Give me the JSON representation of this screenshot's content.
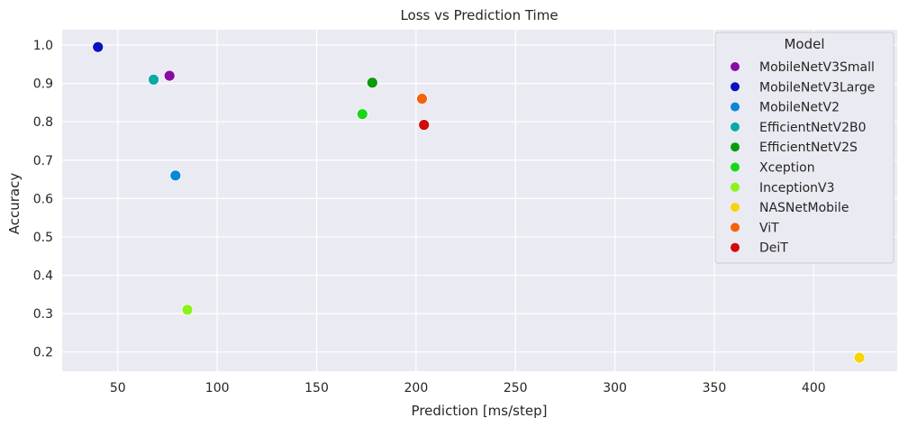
{
  "chart_data": {
    "type": "scatter",
    "title": "Loss vs Prediction Time",
    "xlabel": "Prediction [ms/step]",
    "ylabel": "Accuracy",
    "xlim": [
      22,
      442
    ],
    "ylim": [
      0.15,
      1.04
    ],
    "xticks": [
      50,
      100,
      150,
      200,
      250,
      300,
      350,
      400
    ],
    "yticks": [
      0.2,
      0.3,
      0.4,
      0.5,
      0.6,
      0.7,
      0.8,
      0.9,
      1.0
    ],
    "grid": true,
    "legend": {
      "title": "Model",
      "position": "upper-right"
    },
    "series": [
      {
        "name": "MobileNetV3Small",
        "color": "#8a0aa5",
        "x": 76,
        "y": 0.92
      },
      {
        "name": "MobileNetV3Large",
        "color": "#0a10c0",
        "x": 40,
        "y": 0.995
      },
      {
        "name": "MobileNetV2",
        "color": "#0a86d8",
        "x": 79,
        "y": 0.66
      },
      {
        "name": "EfficientNetV2B0",
        "color": "#0aa8a8",
        "x": 68,
        "y": 0.91
      },
      {
        "name": "EfficientNetV2S",
        "color": "#0a9a0a",
        "x": 178,
        "y": 0.902
      },
      {
        "name": "Xception",
        "color": "#18d618",
        "x": 173,
        "y": 0.82
      },
      {
        "name": "InceptionV3",
        "color": "#8cf21a",
        "x": 85,
        "y": 0.31
      },
      {
        "name": "NASNetMobile",
        "color": "#f5d50a",
        "x": 423,
        "y": 0.185
      },
      {
        "name": "ViT",
        "color": "#f5620a",
        "x": 203,
        "y": 0.86
      },
      {
        "name": "DeiT",
        "color": "#d20a0a",
        "x": 204,
        "y": 0.792
      }
    ]
  }
}
